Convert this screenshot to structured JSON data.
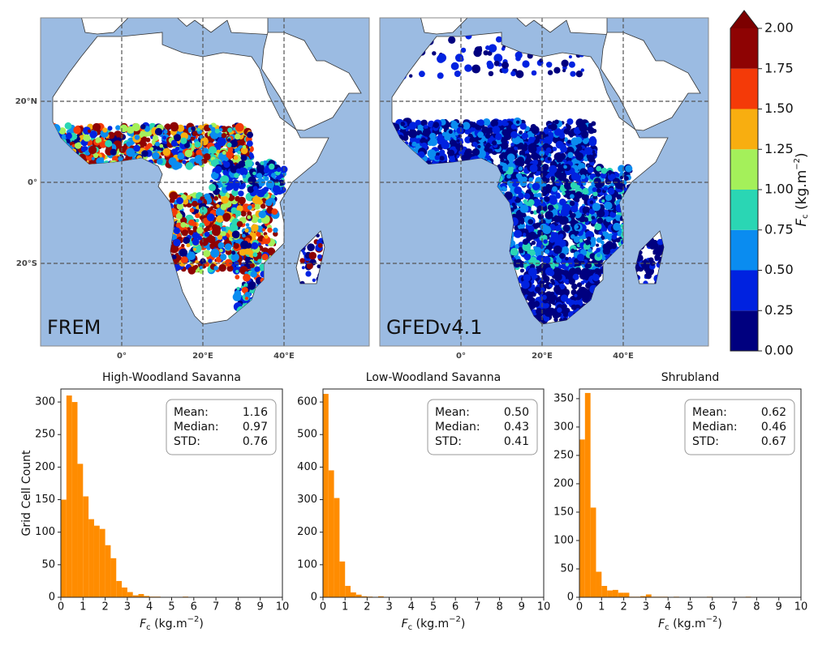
{
  "maps": {
    "panels": [
      {
        "label": "FREM"
      },
      {
        "label": "GFEDv4.1"
      }
    ],
    "lonlim": [
      -20,
      61
    ],
    "latlim": [
      -40.4,
      40.6
    ],
    "lon_ticks": [
      {
        "value": 0,
        "label": "0°"
      },
      {
        "value": 20,
        "label": "20°E"
      },
      {
        "value": 40,
        "label": "40°E"
      }
    ],
    "lat_ticks": [
      {
        "value": 20,
        "label": "20°N"
      },
      {
        "value": 0,
        "label": "0°"
      },
      {
        "value": -20,
        "label": "20°S"
      }
    ]
  },
  "colorbar": {
    "label": [
      "F",
      "c",
      " (kg.m",
      "−2",
      ")"
    ],
    "lim": [
      0,
      2
    ],
    "ticks": [
      {
        "value": 0,
        "label": "0.00"
      },
      {
        "value": 0.25,
        "label": "0.25"
      },
      {
        "value": 0.5,
        "label": "0.50"
      },
      {
        "value": 0.75,
        "label": "0.75"
      },
      {
        "value": 1,
        "label": "1.00"
      },
      {
        "value": 1.25,
        "label": "1.25"
      },
      {
        "value": 1.5,
        "label": "1.50"
      },
      {
        "value": 1.75,
        "label": "1.75"
      },
      {
        "value": 2,
        "label": "2.00"
      }
    ],
    "colors": [
      "#00007f",
      "#0022e0",
      "#0a8cf0",
      "#2ad6b4",
      "#a4f05a",
      "#f8ae10",
      "#f43a08",
      "#8e0303"
    ],
    "extend_color": "#7c0000"
  },
  "chart_data": [
    {
      "type": "histogram",
      "title": "High-Woodland Savanna",
      "ylabel": "Grid Cell Count",
      "xlabel": [
        "F",
        "c",
        " (kg.m",
        "−2",
        ")"
      ],
      "color": "#ff8c00",
      "bins": [
        0,
        0.25,
        0.5,
        0.75,
        1,
        1.25,
        1.5,
        1.75,
        2,
        2.25,
        2.5,
        2.75,
        3,
        3.25,
        3.5,
        3.75,
        4,
        4.25,
        4.5,
        4.75,
        5,
        5.25,
        5.5,
        5.75,
        6
      ],
      "values": [
        150,
        310,
        300,
        205,
        155,
        120,
        110,
        105,
        80,
        60,
        25,
        15,
        8,
        3,
        5,
        2,
        1,
        1,
        0,
        0,
        0,
        0,
        1,
        0
      ],
      "xlim": [
        0,
        10
      ],
      "xticks": [
        0,
        1,
        2,
        3,
        4,
        5,
        6,
        7,
        8,
        9,
        10
      ],
      "ylim": [
        0,
        320
      ],
      "yticks": [
        0,
        50,
        100,
        150,
        200,
        250,
        300
      ],
      "stats": [
        {
          "label": "Mean:",
          "value": "1.16"
        },
        {
          "label": "Median:",
          "value": "0.97"
        },
        {
          "label": "STD:",
          "value": "0.76"
        }
      ]
    },
    {
      "type": "histogram",
      "title": "Low-Woodland Savanna",
      "xlabel": [
        "F",
        "c",
        " (kg.m",
        "−2",
        ")"
      ],
      "color": "#ff8c00",
      "bins": [
        0,
        0.25,
        0.5,
        0.75,
        1,
        1.25,
        1.5,
        1.75,
        2,
        2.25,
        2.5,
        2.75,
        3
      ],
      "values": [
        625,
        390,
        305,
        110,
        35,
        15,
        8,
        3,
        2,
        1,
        3,
        1
      ],
      "xlim": [
        0,
        10
      ],
      "xticks": [
        0,
        1,
        2,
        3,
        4,
        5,
        6,
        7,
        8,
        9,
        10
      ],
      "ylim": [
        0,
        640
      ],
      "yticks": [
        0,
        100,
        200,
        300,
        400,
        500,
        600
      ],
      "stats": [
        {
          "label": "Mean:",
          "value": "0.50"
        },
        {
          "label": "Median:",
          "value": "0.43"
        },
        {
          "label": "STD:",
          "value": "0.41"
        }
      ]
    },
    {
      "type": "histogram",
      "title": "Shrubland",
      "xlabel": [
        "F",
        "c",
        " (kg.m",
        "−2",
        ")"
      ],
      "color": "#ff8c00",
      "bins": [
        0,
        0.25,
        0.5,
        0.75,
        1,
        1.25,
        1.5,
        1.75,
        2,
        2.25,
        2.5,
        2.75,
        3,
        3.25,
        3.5,
        3.75,
        4,
        4.25,
        4.5,
        4.75,
        5,
        5.25,
        5.5,
        5.75,
        6,
        6.25,
        6.5,
        6.75,
        7,
        7.25,
        7.5,
        7.75,
        8
      ],
      "values": [
        278,
        360,
        158,
        45,
        20,
        12,
        13,
        8,
        8,
        1,
        1,
        2,
        5,
        1,
        1,
        1,
        0,
        1,
        0,
        0,
        0,
        0,
        0,
        1,
        0,
        0,
        0,
        0,
        0,
        0,
        1,
        0
      ],
      "xlim": [
        0,
        10
      ],
      "xticks": [
        0,
        1,
        2,
        3,
        4,
        5,
        6,
        7,
        8,
        9,
        10
      ],
      "ylim": [
        0,
        367
      ],
      "yticks": [
        0,
        50,
        100,
        150,
        200,
        250,
        300,
        350
      ],
      "stats": [
        {
          "label": "Mean:",
          "value": "0.62"
        },
        {
          "label": "Median:",
          "value": "0.46"
        },
        {
          "label": "STD:",
          "value": "0.67"
        }
      ]
    }
  ]
}
